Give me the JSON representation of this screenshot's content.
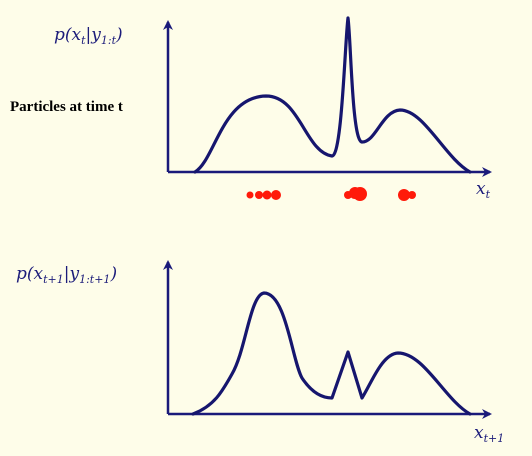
{
  "top_panel": {
    "ylabel": {
      "base": "p(x",
      "sub1": "t",
      "mid": "|y",
      "sub2": "1:t",
      "end": ")"
    },
    "xlabel": {
      "base": "x",
      "sub": "t"
    },
    "side_label": "Particles at time t"
  },
  "bottom_panel": {
    "ylabel": {
      "base": "p(x",
      "sub1": "t+1",
      "mid": "|y",
      "sub2": "1:t+1",
      "end": ")"
    },
    "xlabel": {
      "base": "x",
      "sub": "t+1"
    }
  },
  "colors": {
    "axis": "#1a1a7a",
    "curve": "#16166e",
    "particle": "#ff1a0a",
    "background": "#fefde9"
  }
}
